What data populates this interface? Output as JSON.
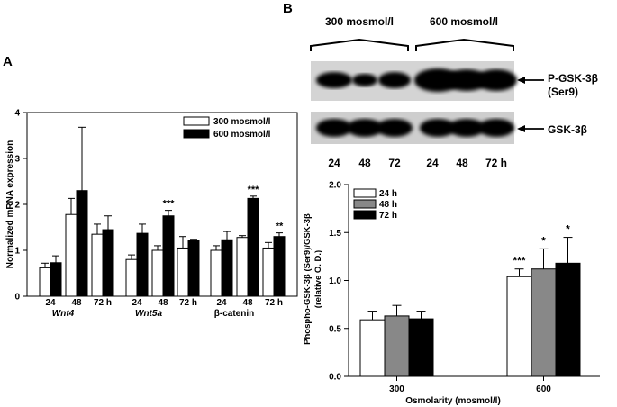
{
  "panel_a": {
    "label": "A",
    "legend": [
      "300 mosmol/l",
      "600 mosmol/l"
    ],
    "group_labels": [
      "Wnt4",
      "Wnt5a",
      "β-catenin"
    ],
    "time_ticks": [
      "24",
      "48",
      "72 h"
    ],
    "chart_data": {
      "type": "bar",
      "ylabel": "Normalized mRNA expression",
      "ylim": [
        0,
        4
      ],
      "yticks": [
        "0",
        "1",
        "2",
        "3",
        "4"
      ],
      "categories": [
        "Wnt4 24",
        "Wnt4 48",
        "Wnt4 72 h",
        "Wnt5a 24",
        "Wnt5a 48",
        "Wnt5a 72 h",
        "β-catenin 24",
        "β-catenin 48",
        "β-catenin 72 h"
      ],
      "series": [
        {
          "name": "300 mosmol/l",
          "color": "#ffffff",
          "values": [
            0.62,
            1.78,
            1.35,
            0.8,
            1.0,
            1.05,
            1.0,
            1.28,
            1.05
          ],
          "errors": [
            0.1,
            0.35,
            0.22,
            0.1,
            0.1,
            0.25,
            0.1,
            0.04,
            0.12
          ]
        },
        {
          "name": "600 mosmol/l",
          "color": "#000000",
          "values": [
            0.73,
            2.3,
            1.45,
            1.37,
            1.75,
            1.22,
            1.23,
            2.13,
            1.3
          ],
          "errors": [
            0.15,
            1.38,
            0.3,
            0.2,
            0.12,
            0.02,
            0.18,
            0.05,
            0.08
          ]
        }
      ],
      "annotations": [
        {
          "category": "Wnt5a 48",
          "text": "***"
        },
        {
          "category": "β-catenin 48",
          "text": "***"
        },
        {
          "category": "β-catenin 72 h",
          "text": "**"
        }
      ]
    }
  },
  "panel_b": {
    "label": "B",
    "blot": {
      "group_labels": [
        "300 mosmol/l",
        "600 mosmol/l"
      ],
      "band_labels": [
        "P-GSK-3β",
        "(Ser9)",
        "GSK-3β"
      ],
      "lane_labels": [
        "24",
        "48",
        "72",
        "24",
        "48",
        "72 h"
      ]
    },
    "chart_data": {
      "type": "bar",
      "ylabel_lines": [
        "Phospho-GSK-3β (Ser9)/GSK-3β",
        "(relative O. D.)"
      ],
      "xlabel": "Osmolarity (mosmol/l)",
      "ylim": [
        0,
        2
      ],
      "yticks": [
        "0.0",
        "0.5",
        "1.0",
        "1.5",
        "2.0"
      ],
      "categories": [
        "300",
        "600"
      ],
      "series": [
        {
          "name": "24 h",
          "color": "#ffffff",
          "values": [
            0.59,
            1.04
          ],
          "errors": [
            0.09,
            0.08
          ]
        },
        {
          "name": "48 h",
          "color": "#888888",
          "values": [
            0.63,
            1.12
          ],
          "errors": [
            0.11,
            0.21
          ]
        },
        {
          "name": "72 h",
          "color": "#000000",
          "values": [
            0.6,
            1.18
          ],
          "errors": [
            0.08,
            0.27
          ]
        }
      ],
      "annotations": [
        {
          "category": "600",
          "series": "24 h",
          "text": "***"
        },
        {
          "category": "600",
          "series": "48 h",
          "text": "*"
        },
        {
          "category": "600",
          "series": "72 h",
          "text": "*"
        }
      ]
    }
  }
}
